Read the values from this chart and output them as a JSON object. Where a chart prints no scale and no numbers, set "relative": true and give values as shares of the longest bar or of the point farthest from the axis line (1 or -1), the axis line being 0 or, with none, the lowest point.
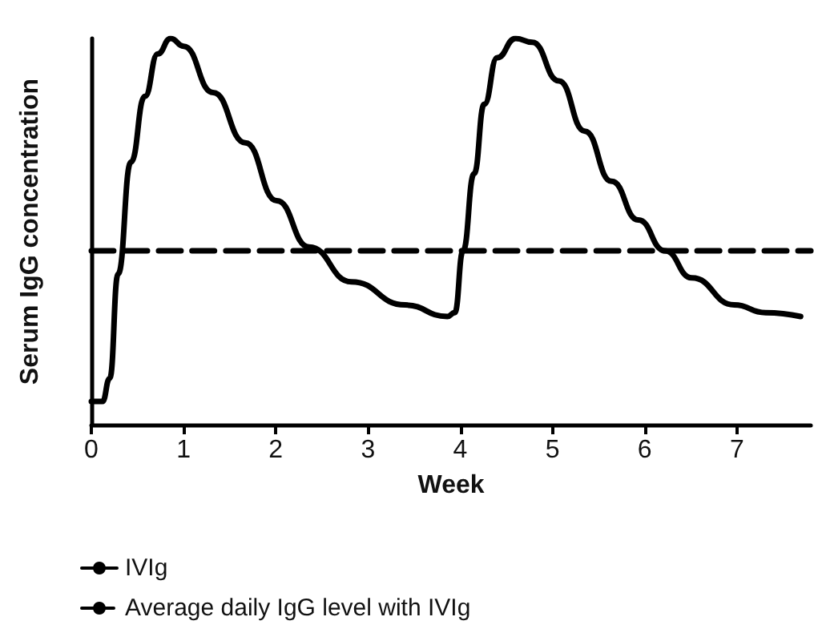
{
  "chart_data": {
    "type": "line",
    "relative": true,
    "xlabel": "Week",
    "ylabel": "Serum IgG concentration",
    "xlim": [
      0,
      7.8
    ],
    "xticks": [
      0,
      1,
      2,
      3,
      4,
      5,
      6,
      7
    ],
    "tick_labels": "x",
    "grid": false,
    "legend": "bottom left",
    "marker": "none",
    "series": [
      {
        "name": "IVIg",
        "color": "#000000",
        "line_style": "solid",
        "x": [
          0,
          0.12,
          0.2,
          0.29,
          0.43,
          0.58,
          0.72,
          0.86,
          1.0,
          1.32,
          1.67,
          2.01,
          2.36,
          2.82,
          3.4,
          3.86,
          3.94,
          4.03,
          4.15,
          4.26,
          4.4,
          4.6,
          4.78,
          5.07,
          5.35,
          5.64,
          5.93,
          6.22,
          6.51,
          6.97,
          7.31,
          7.69
        ],
        "values": [
          0.06,
          0.06,
          0.12,
          0.39,
          0.68,
          0.85,
          0.96,
          1.0,
          0.98,
          0.86,
          0.73,
          0.58,
          0.46,
          0.37,
          0.31,
          0.28,
          0.29,
          0.45,
          0.65,
          0.83,
          0.95,
          1.0,
          0.99,
          0.89,
          0.76,
          0.63,
          0.53,
          0.45,
          0.38,
          0.31,
          0.29,
          0.28
        ]
      },
      {
        "name": "Average daily IgG level with IVIg",
        "color": "#000000",
        "line_style": "dashed",
        "x": [
          0,
          7.8
        ],
        "values": [
          0.45,
          0.45
        ]
      }
    ]
  }
}
